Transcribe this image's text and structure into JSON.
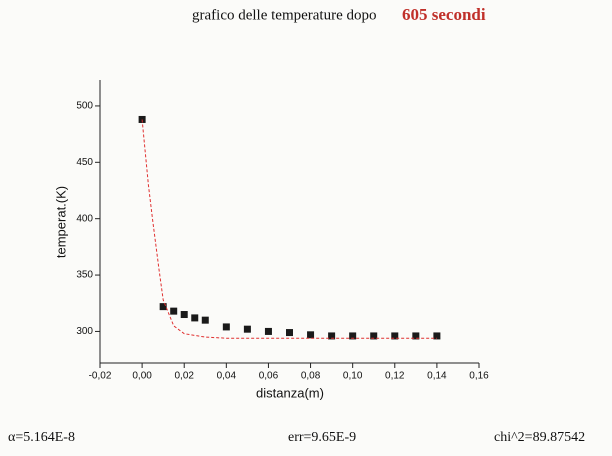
{
  "chart_data": {
    "type": "scatter",
    "title": "grafico delle temperature dopo",
    "title_highlight": "605 secondi",
    "xlabel": "distanza(m)",
    "ylabel": "temperat.(K)",
    "xlim": [
      -0.02,
      0.16
    ],
    "ylim": [
      272,
      523
    ],
    "xticks": [
      {
        "value": -0.02,
        "label": "-0,02"
      },
      {
        "value": 0,
        "label": "0,00"
      },
      {
        "value": 0.02,
        "label": "0,02"
      },
      {
        "value": 0.04,
        "label": "0,04"
      },
      {
        "value": 0.06,
        "label": "0,06"
      },
      {
        "value": 0.08,
        "label": "0,08"
      },
      {
        "value": 0.1,
        "label": "0,10"
      },
      {
        "value": 0.12,
        "label": "0,12"
      },
      {
        "value": 0.14,
        "label": "0,14"
      },
      {
        "value": 0.16,
        "label": "0,16"
      }
    ],
    "yticks": [
      300,
      350,
      400,
      450,
      500
    ],
    "series": [
      {
        "type": "scatter",
        "color": "#1a1a1a",
        "x": [
          0,
          0.01,
          0.015,
          0.02,
          0.025,
          0.03,
          0.04,
          0.05,
          0.06,
          0.07,
          0.08,
          0.09,
          0.1,
          0.11,
          0.12,
          0.13,
          0.14
        ],
        "values": [
          488,
          322,
          318,
          315,
          312,
          310,
          304,
          302,
          300,
          299,
          297,
          296,
          296,
          296,
          296,
          296,
          296
        ]
      },
      {
        "type": "line",
        "color": "#e03030",
        "dashed": true,
        "x": [
          0,
          0.003,
          0.005,
          0.008,
          0.01,
          0.015,
          0.02,
          0.03,
          0.04,
          0.06,
          0.1,
          0.14
        ],
        "values": [
          488,
          430,
          399,
          355,
          328,
          305,
          298,
          295,
          294,
          294,
          294,
          294
        ]
      }
    ]
  },
  "footer": {
    "alpha": "α=5.164E-8",
    "err": "err=9.65E-9",
    "chi": "chi^2=89.87542"
  }
}
